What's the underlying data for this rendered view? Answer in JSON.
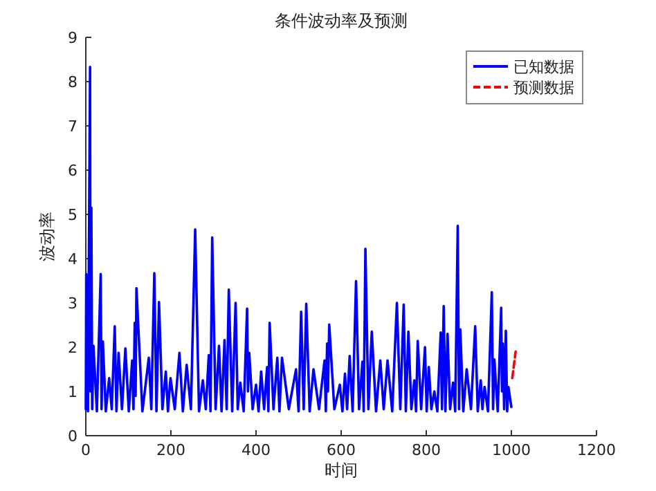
{
  "chart_data": {
    "type": "line",
    "title": "条件波动率及预测",
    "xlabel": "时间",
    "ylabel": "波动率",
    "xlim": [
      0,
      1200
    ],
    "xticks": [
      0,
      200,
      400,
      600,
      800,
      1000,
      1200
    ],
    "ylim": [
      0,
      9
    ],
    "yticks": [
      0,
      1,
      2,
      3,
      4,
      5,
      6,
      7,
      8,
      9
    ],
    "grid": false,
    "legend": "top right",
    "series": [
      {
        "name": "已知数据",
        "color": "#0000ff",
        "line_style": "solid",
        "x": [
          0,
          1,
          5,
          10,
          11,
          13,
          15,
          18,
          26,
          35,
          37,
          40,
          47,
          55,
          61,
          68,
          72,
          77,
          85,
          93,
          101,
          109,
          112,
          115,
          117,
          119,
          133,
          148,
          154,
          161,
          166,
          172,
          180,
          188,
          193,
          199,
          209,
          220,
          228,
          237,
          247,
          257,
          266,
          275,
          282,
          289,
          293,
          297,
          305,
          313,
          319,
          326,
          331,
          336,
          344,
          352,
          357,
          363,
          371,
          379,
          381,
          384,
          392,
          400,
          406,
          412,
          419,
          426,
          429,
          432,
          441,
          450,
          455,
          461,
          477,
          494,
          500,
          506,
          512,
          518,
          526,
          535,
          548,
          561,
          564,
          567,
          569,
          572,
          584,
          597,
          603,
          609,
          614,
          620,
          627,
          635,
          642,
          650,
          653,
          657,
          664,
          672,
          682,
          692,
          700,
          709,
          720,
          731,
          739,
          747,
          752,
          758,
          765,
          772,
          776,
          780,
          788,
          797,
          801,
          806,
          812,
          819,
          826,
          834,
          837,
          841,
          845,
          850,
          856,
          863,
          868,
          874,
          877,
          880,
          887,
          895,
          905,
          915,
          921,
          928,
          932,
          937,
          945,
          954,
          957,
          960,
          968,
          976,
          978,
          980,
          983,
          987,
          990,
          993,
          1000
        ],
        "values": [
          0.6,
          3.65,
          0.55,
          8.33,
          1.0,
          5.15,
          0.6,
          2.03,
          0.55,
          3.65,
          0.6,
          2.13,
          0.55,
          1.3,
          0.6,
          2.47,
          0.55,
          1.87,
          0.6,
          1.97,
          0.55,
          1.7,
          0.6,
          2.55,
          0.9,
          3.33,
          0.55,
          1.76,
          0.6,
          3.67,
          0.55,
          3.02,
          0.6,
          1.45,
          0.55,
          1.3,
          0.6,
          1.87,
          0.55,
          1.6,
          0.6,
          4.66,
          0.55,
          1.25,
          0.6,
          1.82,
          0.55,
          4.48,
          0.6,
          2.03,
          0.55,
          2.16,
          0.6,
          3.3,
          0.55,
          3.0,
          0.6,
          1.2,
          0.55,
          2.87,
          1.0,
          1.87,
          0.6,
          1.15,
          0.55,
          1.45,
          0.6,
          1.55,
          0.55,
          2.55,
          0.6,
          1.76,
          0.55,
          1.76,
          0.6,
          1.5,
          0.55,
          2.8,
          0.6,
          2.98,
          0.55,
          1.5,
          0.6,
          1.7,
          0.55,
          2.08,
          1.0,
          2.51,
          0.6,
          1.15,
          0.55,
          1.4,
          0.6,
          1.8,
          0.55,
          3.49,
          0.6,
          1.67,
          0.55,
          4.22,
          0.6,
          2.35,
          0.55,
          1.7,
          0.6,
          1.7,
          0.55,
          3.0,
          0.6,
          2.96,
          0.55,
          2.35,
          0.6,
          1.25,
          0.55,
          2.14,
          0.6,
          2.0,
          0.55,
          1.55,
          0.6,
          1.0,
          0.55,
          2.33,
          0.6,
          2.93,
          0.55,
          2.3,
          0.6,
          1.2,
          0.55,
          4.74,
          0.6,
          2.4,
          0.55,
          1.5,
          0.6,
          2.47,
          0.55,
          1.25,
          0.6,
          1.1,
          0.55,
          3.24,
          0.6,
          1.72,
          0.55,
          2.89,
          1.0,
          2.08,
          0.6,
          2.37,
          0.55,
          1.1,
          0.65
        ]
      },
      {
        "name": "预测数据",
        "color": "#ff0000",
        "line_style": "dashed",
        "x": [
          1002,
          1010
        ],
        "values": [
          1.3,
          1.9
        ]
      }
    ]
  }
}
